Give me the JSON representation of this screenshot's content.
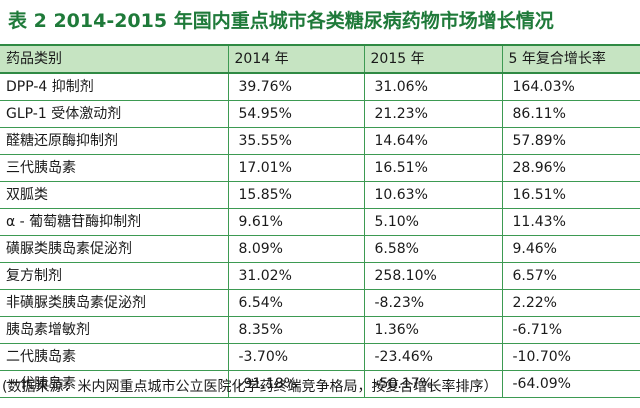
{
  "title": "表 2  2014-2015 年国内重点城市各类糖尿病药物市场增长情况",
  "headers": [
    "药品类别",
    "2014 年",
    "2015 年",
    "5 年复合增长率"
  ],
  "rows": [
    [
      "DPP-4 抑制剂",
      "39.76%",
      "31.06%",
      "164.03%"
    ],
    [
      "GLP-1 受体激动剂",
      "54.95%",
      "21.23%",
      "86.11%"
    ],
    [
      "醛糖还原酶抑制剂",
      "35.55%",
      "14.64%",
      "57.89%"
    ],
    [
      "三代胰岛素",
      "17.01%",
      "16.51%",
      "28.96%"
    ],
    [
      "双胍类",
      "15.85%",
      "10.63%",
      "16.51%"
    ],
    [
      "α - 葡萄糖苷酶抑制剂",
      "9.61%",
      "5.10%",
      "11.43%"
    ],
    [
      "磺脲类胰岛素促泌剂",
      "8.09%",
      "6.58%",
      "9.46%"
    ],
    [
      "复方制剂",
      "31.02%",
      "258.10%",
      "6.57%"
    ],
    [
      "非磺脲类胰岛素促泌剂",
      "6.54%",
      "-8.23%",
      "2.22%"
    ],
    [
      "胰岛素增敏剂",
      "8.35%",
      "1.36%",
      "-6.71%"
    ],
    [
      "二代胰岛素",
      "-3.70%",
      "-23.46%",
      "-10.70%"
    ],
    [
      "一代胰岛素",
      "-91.18%",
      "-50.17%",
      "-64.09%"
    ]
  ],
  "note": "(数据来源：米内网重点城市公立医院化学药终端竞争格局，按复合增长率排序）",
  "colors": {
    "title": "#1f7a3a",
    "header_bg": "#c6e4c2",
    "rule": "#3d9a52"
  }
}
